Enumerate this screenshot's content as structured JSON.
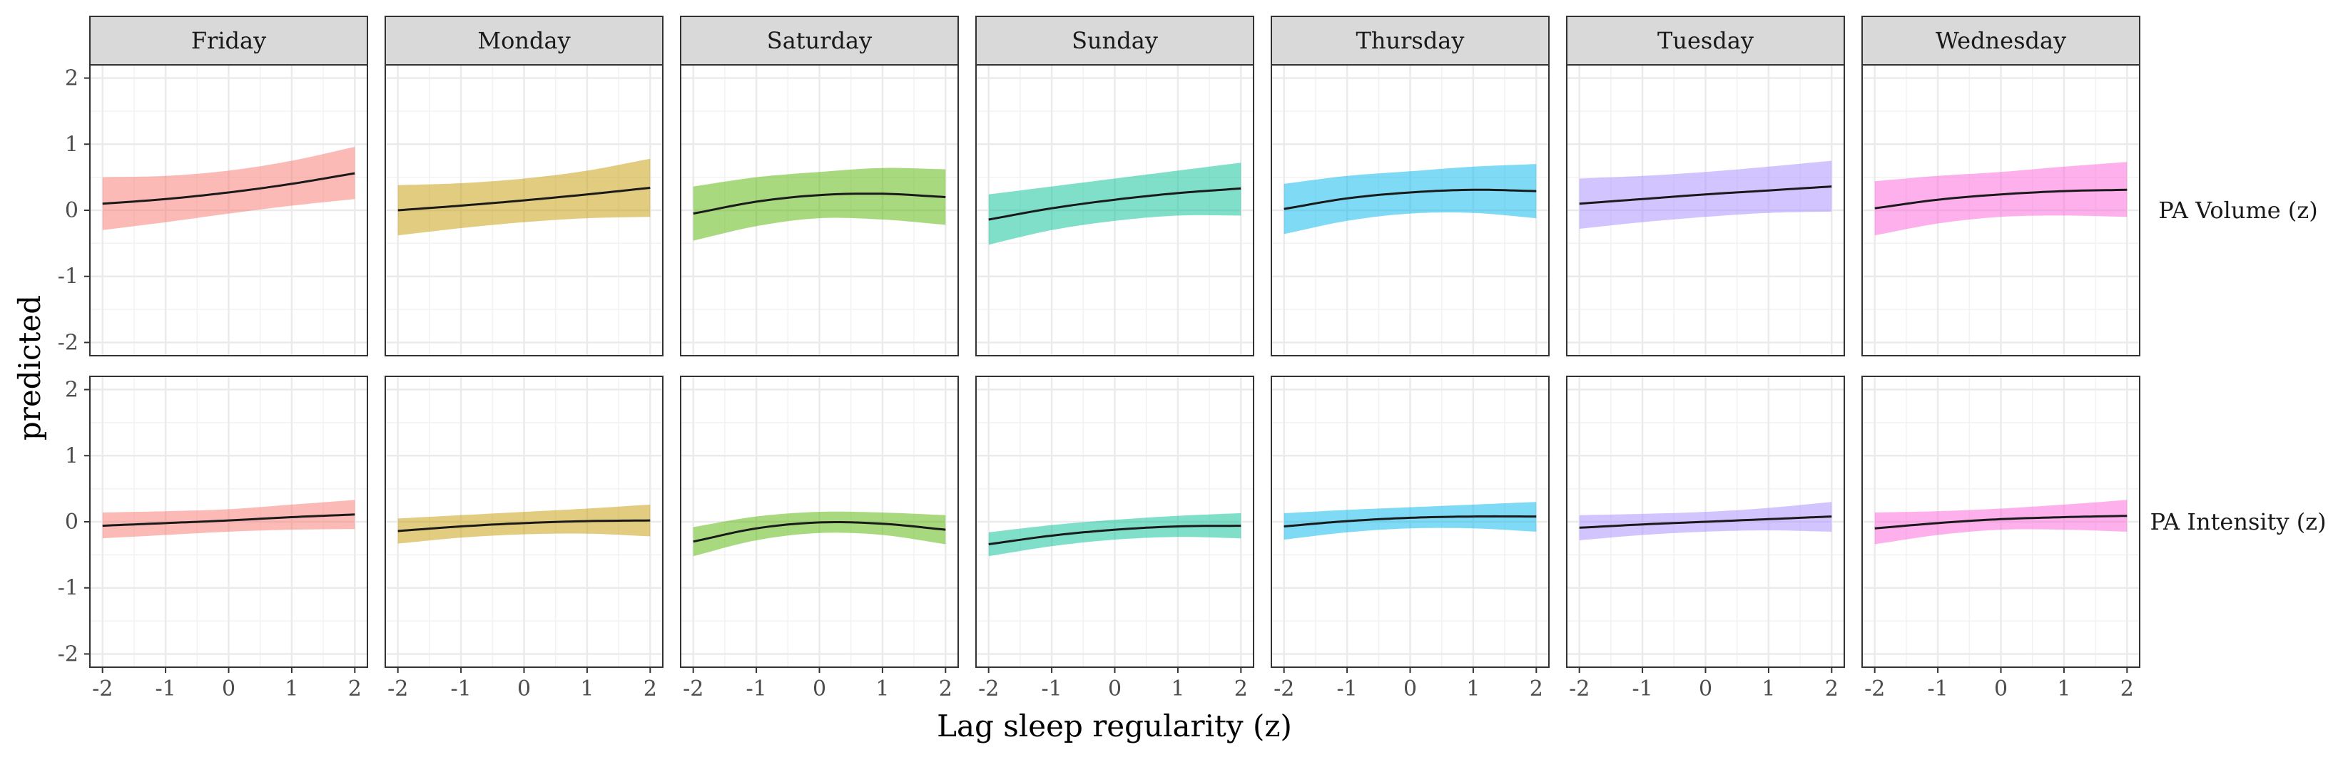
{
  "chart_data": {
    "type": "line",
    "xlabel": "Lag sleep regularity (z)",
    "ylabel": "predicted",
    "xlim": [
      -2.2,
      2.2
    ],
    "ylim": [
      -2.2,
      2.2
    ],
    "x_ticks": [
      -2,
      -1,
      0,
      1,
      2
    ],
    "x_tick_labels": [
      "-2",
      "-1",
      "0",
      "1",
      "2"
    ],
    "y_ticks": [
      -2,
      -1,
      0,
      1,
      2
    ],
    "y_tick_labels": [
      "-2",
      "-1",
      "0",
      "1",
      "2"
    ],
    "grid": true,
    "legend": "none",
    "panel_columns": [
      "Friday",
      "Monday",
      "Saturday",
      "Sunday",
      "Thursday",
      "Tuesday",
      "Wednesday"
    ],
    "panel_rows": [
      "PA Volume (z)",
      "PA Intensity (z)"
    ],
    "colors": {
      "Friday": "#F8766D",
      "Monday": "#C49A00",
      "Saturday": "#53B400",
      "Sunday": "#00C094",
      "Thursday": "#00B6EB",
      "Tuesday": "#A58AFF",
      "Wednesday": "#FB61D7"
    },
    "x": [
      -2,
      -1,
      0,
      1,
      2
    ],
    "series": [
      {
        "column": "Friday",
        "row": "PA Volume (z)",
        "y": [
          0.1,
          0.17,
          0.27,
          0.4,
          0.56
        ],
        "lower": [
          -0.3,
          -0.18,
          -0.05,
          0.07,
          0.17
        ],
        "upper": [
          0.5,
          0.52,
          0.6,
          0.75,
          0.96
        ]
      },
      {
        "column": "Monday",
        "row": "PA Volume (z)",
        "y": [
          0.0,
          0.07,
          0.15,
          0.24,
          0.34
        ],
        "lower": [
          -0.38,
          -0.27,
          -0.18,
          -0.12,
          -0.1
        ],
        "upper": [
          0.38,
          0.41,
          0.48,
          0.6,
          0.78
        ]
      },
      {
        "column": "Saturday",
        "row": "PA Volume (z)",
        "y": [
          -0.05,
          0.13,
          0.23,
          0.25,
          0.2
        ],
        "lower": [
          -0.46,
          -0.24,
          -0.12,
          -0.14,
          -0.22
        ],
        "upper": [
          0.36,
          0.5,
          0.58,
          0.64,
          0.62
        ]
      },
      {
        "column": "Sunday",
        "row": "PA Volume (z)",
        "y": [
          -0.14,
          0.03,
          0.16,
          0.26,
          0.33
        ],
        "lower": [
          -0.52,
          -0.3,
          -0.16,
          -0.08,
          -0.08
        ],
        "upper": [
          0.24,
          0.36,
          0.48,
          0.6,
          0.72
        ]
      },
      {
        "column": "Thursday",
        "row": "PA Volume (z)",
        "y": [
          0.02,
          0.18,
          0.27,
          0.31,
          0.29
        ],
        "lower": [
          -0.36,
          -0.16,
          -0.05,
          -0.04,
          -0.12
        ],
        "upper": [
          0.4,
          0.52,
          0.59,
          0.66,
          0.7
        ]
      },
      {
        "column": "Tuesday",
        "row": "PA Volume (z)",
        "y": [
          0.1,
          0.17,
          0.24,
          0.3,
          0.36
        ],
        "lower": [
          -0.28,
          -0.18,
          -0.1,
          -0.04,
          -0.02
        ],
        "upper": [
          0.48,
          0.52,
          0.58,
          0.66,
          0.75
        ]
      },
      {
        "column": "Wednesday",
        "row": "PA Volume (z)",
        "y": [
          0.03,
          0.16,
          0.24,
          0.29,
          0.31
        ],
        "lower": [
          -0.38,
          -0.2,
          -0.1,
          -0.08,
          -0.1
        ],
        "upper": [
          0.44,
          0.52,
          0.58,
          0.66,
          0.73
        ]
      },
      {
        "column": "Friday",
        "row": "PA Intensity (z)",
        "y": [
          -0.06,
          -0.02,
          0.02,
          0.07,
          0.11
        ],
        "lower": [
          -0.25,
          -0.2,
          -0.15,
          -0.12,
          -0.11
        ],
        "upper": [
          0.14,
          0.16,
          0.19,
          0.26,
          0.33
        ]
      },
      {
        "column": "Monday",
        "row": "PA Intensity (z)",
        "y": [
          -0.14,
          -0.07,
          -0.02,
          0.01,
          0.02
        ],
        "lower": [
          -0.33,
          -0.24,
          -0.19,
          -0.18,
          -0.22
        ],
        "upper": [
          0.05,
          0.1,
          0.15,
          0.2,
          0.26
        ]
      },
      {
        "column": "Saturday",
        "row": "PA Intensity (z)",
        "y": [
          -0.3,
          -0.1,
          -0.01,
          -0.03,
          -0.12
        ],
        "lower": [
          -0.52,
          -0.28,
          -0.17,
          -0.2,
          -0.34
        ],
        "upper": [
          -0.08,
          0.08,
          0.15,
          0.14,
          0.1
        ]
      },
      {
        "column": "Sunday",
        "row": "PA Intensity (z)",
        "y": [
          -0.34,
          -0.21,
          -0.12,
          -0.07,
          -0.06
        ],
        "lower": [
          -0.52,
          -0.37,
          -0.27,
          -0.23,
          -0.25
        ],
        "upper": [
          -0.16,
          -0.05,
          0.03,
          0.09,
          0.13
        ]
      },
      {
        "column": "Thursday",
        "row": "PA Intensity (z)",
        "y": [
          -0.07,
          0.01,
          0.06,
          0.08,
          0.08
        ],
        "lower": [
          -0.27,
          -0.16,
          -0.1,
          -0.1,
          -0.15
        ],
        "upper": [
          0.13,
          0.18,
          0.22,
          0.26,
          0.3
        ]
      },
      {
        "column": "Tuesday",
        "row": "PA Intensity (z)",
        "y": [
          -0.09,
          -0.04,
          0.0,
          0.04,
          0.08
        ],
        "lower": [
          -0.28,
          -0.2,
          -0.15,
          -0.13,
          -0.15
        ],
        "upper": [
          0.1,
          0.12,
          0.15,
          0.21,
          0.3
        ]
      },
      {
        "column": "Wednesday",
        "row": "PA Intensity (z)",
        "y": [
          -0.1,
          -0.02,
          0.04,
          0.07,
          0.09
        ],
        "lower": [
          -0.34,
          -0.2,
          -0.12,
          -0.12,
          -0.15
        ],
        "upper": [
          0.14,
          0.16,
          0.2,
          0.26,
          0.33
        ]
      }
    ]
  }
}
